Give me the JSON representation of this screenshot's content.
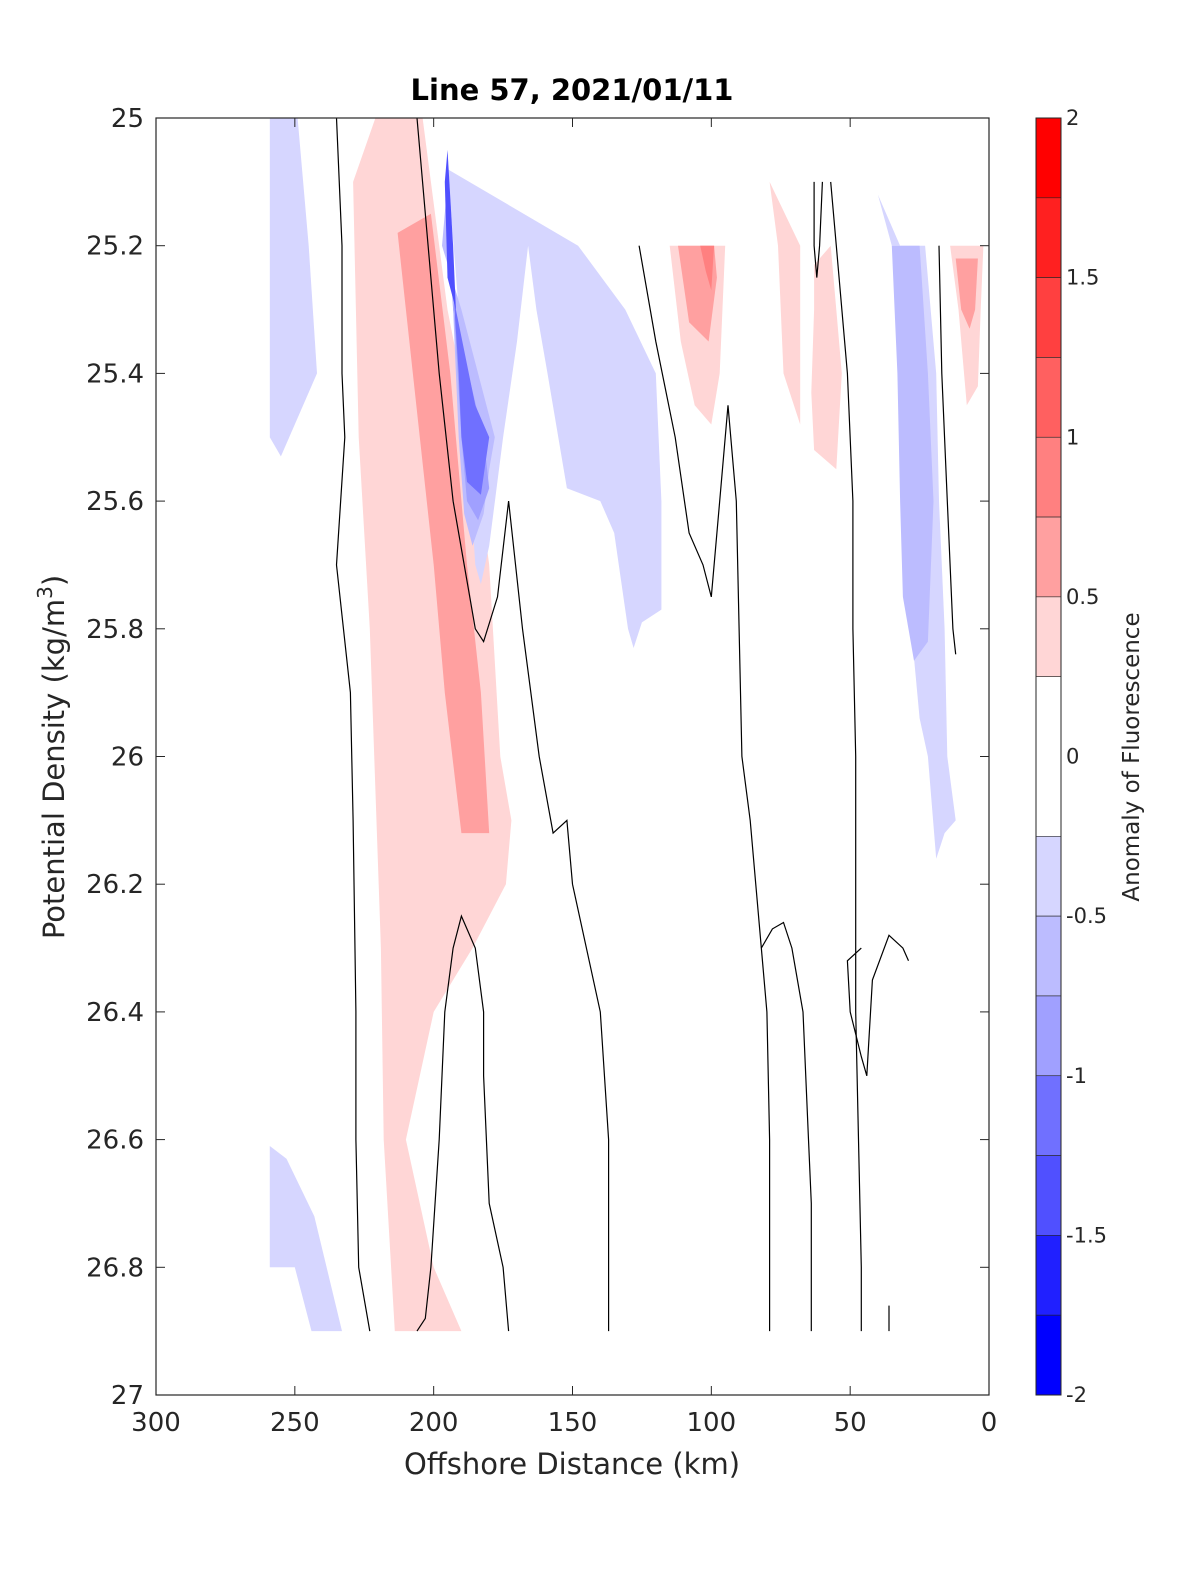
{
  "chart_data": {
    "type": "contour",
    "title": "Line 57, 2021/01/11",
    "xlabel": "Offshore Distance (km)",
    "ylabel": "Potential Density (kg/m3)",
    "ylabel_main": "Potential Density (kg/m",
    "ylabel_sup": "3",
    "ylabel_close": ")",
    "xlim": [
      300,
      0
    ],
    "ylim": [
      25,
      27
    ],
    "y_reversed": true,
    "x_ticks": [
      "300",
      "250",
      "200",
      "150",
      "100",
      "50",
      "0"
    ],
    "y_ticks": [
      "25",
      "25.2",
      "25.4",
      "25.6",
      "25.8",
      "26",
      "26.2",
      "26.4",
      "26.6",
      "26.8",
      "27"
    ],
    "colorbar": {
      "label": "Anomaly of Fluorescence",
      "range": [
        -2,
        2
      ],
      "tick_labels": [
        "2",
        "1.5",
        "1",
        "0.5",
        "0",
        "-0.5",
        "-1",
        "-1.5",
        "-2"
      ],
      "levels": [
        {
          "min": 1.75,
          "max": 2.0,
          "color": "#ff0000"
        },
        {
          "min": 1.5,
          "max": 1.75,
          "color": "#ff2020"
        },
        {
          "min": 1.25,
          "max": 1.5,
          "color": "#ff4040"
        },
        {
          "min": 1.0,
          "max": 1.25,
          "color": "#ff6060"
        },
        {
          "min": 0.75,
          "max": 1.0,
          "color": "#ff8080"
        },
        {
          "min": 0.5,
          "max": 0.75,
          "color": "#ffa0a0"
        },
        {
          "min": 0.25,
          "max": 0.5,
          "color": "#ffd6d6"
        },
        {
          "min": -0.25,
          "max": 0.25,
          "color": "#ffffff"
        },
        {
          "min": -0.5,
          "max": -0.25,
          "color": "#d6d6ff"
        },
        {
          "min": -0.75,
          "max": -0.5,
          "color": "#bcbcff"
        },
        {
          "min": -1.0,
          "max": -0.75,
          "color": "#a0a0ff"
        },
        {
          "min": -1.25,
          "max": -1.0,
          "color": "#7070ff"
        },
        {
          "min": -1.5,
          "max": -1.25,
          "color": "#5050ff"
        },
        {
          "min": -1.75,
          "max": -1.5,
          "color": "#2020ff"
        },
        {
          "min": -2.0,
          "max": -1.75,
          "color": "#0000ff"
        }
      ]
    },
    "filled_regions": [
      {
        "level": 0.375,
        "color": "#ffd6d6",
        "points": [
          [
            221,
            25
          ],
          [
            204,
            25
          ],
          [
            195,
            25.3
          ],
          [
            186,
            25.5
          ],
          [
            180,
            25.7
          ],
          [
            176,
            26
          ],
          [
            172,
            26.1
          ],
          [
            174,
            26.2
          ],
          [
            186,
            26.3
          ],
          [
            200,
            26.4
          ],
          [
            210,
            26.6
          ],
          [
            200,
            26.8
          ],
          [
            190,
            26.9
          ],
          [
            214,
            26.9
          ],
          [
            218,
            26.6
          ],
          [
            219,
            26.3
          ],
          [
            223,
            25.8
          ],
          [
            227,
            25.5
          ],
          [
            228,
            25.3
          ],
          [
            229,
            25.1
          ]
        ]
      },
      {
        "level": 0.625,
        "color": "#ffa0a0",
        "points": [
          [
            213,
            25.18
          ],
          [
            201,
            25.15
          ],
          [
            194,
            25.4
          ],
          [
            188,
            25.7
          ],
          [
            183,
            25.9
          ],
          [
            180,
            26.12
          ],
          [
            190,
            26.12
          ],
          [
            196,
            25.9
          ],
          [
            200,
            25.7
          ],
          [
            205,
            25.5
          ],
          [
            210,
            25.3
          ]
        ]
      },
      {
        "level": -0.375,
        "color": "#d6d6ff",
        "points": [
          [
            259,
            25
          ],
          [
            249,
            25
          ],
          [
            245,
            25.2
          ],
          [
            242,
            25.4
          ],
          [
            255,
            25.53
          ],
          [
            259,
            25.5
          ]
        ]
      },
      {
        "level": -0.375,
        "color": "#d6d6ff",
        "points": [
          [
            259,
            26.61
          ],
          [
            253,
            26.63
          ],
          [
            243,
            26.72
          ],
          [
            233,
            26.9
          ],
          [
            244,
            26.9
          ],
          [
            250,
            26.8
          ],
          [
            259,
            26.8
          ]
        ]
      },
      {
        "level": -0.375,
        "color": "#d6d6ff",
        "points": [
          [
            195,
            25.08
          ],
          [
            191,
            25.3
          ],
          [
            188,
            25.5
          ],
          [
            185,
            25.7
          ],
          [
            183,
            25.73
          ],
          [
            180,
            25.67
          ],
          [
            175,
            25.5
          ],
          [
            170,
            25.35
          ],
          [
            166,
            25.2
          ],
          [
            163,
            25.3
          ],
          [
            159,
            25.4
          ],
          [
            152,
            25.58
          ],
          [
            140,
            25.6
          ],
          [
            135,
            25.65
          ],
          [
            130,
            25.8
          ],
          [
            128,
            25.83
          ],
          [
            125,
            25.79
          ],
          [
            118,
            25.77
          ],
          [
            118,
            25.6
          ],
          [
            120,
            25.4
          ],
          [
            131,
            25.3
          ],
          [
            148,
            25.2
          ]
        ]
      },
      {
        "level": -0.375,
        "color": "#d6d6ff",
        "points": [
          [
            40,
            25.12
          ],
          [
            32,
            25.2
          ],
          [
            30,
            25.4
          ],
          [
            29,
            25.6
          ],
          [
            28,
            25.8
          ],
          [
            25,
            25.94
          ],
          [
            22,
            26
          ],
          [
            19,
            26.16
          ],
          [
            16,
            26.12
          ],
          [
            12,
            26.1
          ],
          [
            15,
            26
          ],
          [
            16,
            25.8
          ],
          [
            18,
            25.6
          ],
          [
            19,
            25.4
          ],
          [
            23,
            25.2
          ],
          [
            35,
            25.2
          ]
        ]
      },
      {
        "level": -0.625,
        "color": "#bcbcff",
        "points": [
          [
            195,
            25.1
          ],
          [
            193,
            25.3
          ],
          [
            191,
            25.5
          ],
          [
            189,
            25.62
          ],
          [
            186,
            25.67
          ],
          [
            182,
            25.62
          ],
          [
            180,
            25.55
          ],
          [
            178,
            25.5
          ],
          [
            190,
            25.3
          ],
          [
            197,
            25.2
          ]
        ]
      },
      {
        "level": -0.625,
        "color": "#bcbcff",
        "points": [
          [
            35,
            25.2
          ],
          [
            33,
            25.4
          ],
          [
            32,
            25.6
          ],
          [
            31,
            25.75
          ],
          [
            27,
            25.85
          ],
          [
            22,
            25.82
          ],
          [
            20,
            25.6
          ],
          [
            22,
            25.4
          ],
          [
            25,
            25.2
          ]
        ]
      },
      {
        "level": -0.875,
        "color": "#a0a0ff",
        "points": [
          [
            195,
            25.15
          ],
          [
            192,
            25.35
          ],
          [
            190,
            25.5
          ],
          [
            188,
            25.6
          ],
          [
            184,
            25.63
          ],
          [
            180,
            25.58
          ],
          [
            182,
            25.5
          ],
          [
            193,
            25.3
          ]
        ]
      },
      {
        "level": -1.125,
        "color": "#7070ff",
        "points": [
          [
            194,
            25.2
          ],
          [
            191,
            25.4
          ],
          [
            190,
            25.5
          ],
          [
            188,
            25.57
          ],
          [
            183,
            25.59
          ],
          [
            180,
            25.5
          ],
          [
            185,
            25.45
          ],
          [
            192,
            25.3
          ]
        ]
      },
      {
        "level": -1.375,
        "color": "#5050ff",
        "points": [
          [
            195,
            25.05
          ],
          [
            193,
            25.2
          ],
          [
            192,
            25.3
          ],
          [
            195,
            25.25
          ],
          [
            196,
            25.1
          ]
        ]
      },
      {
        "level": 0.375,
        "color": "#ffd6d6",
        "points": [
          [
            115,
            25.2
          ],
          [
            111,
            25.35
          ],
          [
            106,
            25.45
          ],
          [
            100,
            25.48
          ],
          [
            97,
            25.4
          ],
          [
            95,
            25.2
          ]
        ]
      },
      {
        "level": 0.625,
        "color": "#ffa0a0",
        "points": [
          [
            112,
            25.2
          ],
          [
            108,
            25.32
          ],
          [
            101,
            25.35
          ],
          [
            98,
            25.25
          ],
          [
            99,
            25.2
          ]
        ]
      },
      {
        "level": 0.875,
        "color": "#ff8080",
        "points": [
          [
            104,
            25.2
          ],
          [
            102,
            25.24
          ],
          [
            100,
            25.27
          ],
          [
            99,
            25.2
          ]
        ]
      },
      {
        "level": 0.375,
        "color": "#ffd6d6",
        "points": [
          [
            79,
            25.1
          ],
          [
            76,
            25.2
          ],
          [
            74,
            25.4
          ],
          [
            68,
            25.48
          ],
          [
            68,
            25.3
          ],
          [
            68,
            25.2
          ]
        ]
      },
      {
        "level": 0.375,
        "color": "#ffd6d6",
        "points": [
          [
            63,
            25.23
          ],
          [
            63,
            25.3
          ],
          [
            64,
            25.43
          ],
          [
            63,
            25.52
          ],
          [
            55,
            25.55
          ],
          [
            53,
            25.4
          ],
          [
            55,
            25.3
          ],
          [
            57,
            25.2
          ]
        ]
      },
      {
        "level": 0.375,
        "color": "#ffd6d6",
        "points": [
          [
            14,
            25.2
          ],
          [
            11,
            25.3
          ],
          [
            8,
            25.45
          ],
          [
            4,
            25.42
          ],
          [
            3,
            25.3
          ],
          [
            2,
            25.2
          ]
        ]
      },
      {
        "level": 0.625,
        "color": "#ffa0a0",
        "points": [
          [
            12,
            25.22
          ],
          [
            10,
            25.3
          ],
          [
            7,
            25.33
          ],
          [
            5,
            25.3
          ],
          [
            4,
            25.22
          ]
        ]
      }
    ],
    "contour_lines": [
      {
        "points": [
          [
            235,
            25
          ],
          [
            233,
            25.2
          ],
          [
            233,
            25.4
          ],
          [
            232,
            25.5
          ],
          [
            235,
            25.7
          ],
          [
            230,
            25.9
          ],
          [
            229,
            26.1
          ],
          [
            228,
            26.4
          ],
          [
            228,
            26.6
          ],
          [
            227,
            26.8
          ],
          [
            223,
            26.9
          ]
        ]
      },
      {
        "points": [
          [
            206,
            25
          ],
          [
            202,
            25.2
          ],
          [
            198,
            25.4
          ],
          [
            193,
            25.6
          ],
          [
            189,
            25.7
          ],
          [
            185,
            25.8
          ],
          [
            182,
            25.82
          ],
          [
            177,
            25.75
          ],
          [
            173,
            25.6
          ],
          [
            168,
            25.8
          ],
          [
            162,
            26
          ],
          [
            157,
            26.12
          ],
          [
            152,
            26.1
          ],
          [
            150,
            26.2
          ],
          [
            140,
            26.4
          ],
          [
            137,
            26.6
          ],
          [
            137,
            26.9
          ]
        ]
      },
      {
        "points": [
          [
            173,
            26.9
          ],
          [
            175,
            26.8
          ],
          [
            180,
            26.7
          ],
          [
            182,
            26.5
          ],
          [
            182,
            26.4
          ],
          [
            185,
            26.3
          ],
          [
            190,
            26.25
          ],
          [
            193,
            26.3
          ],
          [
            196,
            26.4
          ],
          [
            198,
            26.6
          ],
          [
            201,
            26.8
          ],
          [
            203,
            26.88
          ],
          [
            206,
            26.9
          ]
        ]
      },
      {
        "points": [
          [
            126,
            25.2
          ],
          [
            120,
            25.35
          ],
          [
            113,
            25.5
          ],
          [
            108,
            25.65
          ],
          [
            103,
            25.7
          ],
          [
            100,
            25.75
          ],
          [
            97,
            25.6
          ],
          [
            94,
            25.45
          ],
          [
            91,
            25.6
          ],
          [
            90,
            25.8
          ],
          [
            89,
            26
          ],
          [
            86,
            26.1
          ],
          [
            80,
            26.4
          ],
          [
            79,
            26.6
          ],
          [
            79,
            26.9
          ]
        ]
      },
      {
        "points": [
          [
            64,
            26.9
          ],
          [
            64,
            26.7
          ],
          [
            65,
            26.6
          ],
          [
            67,
            26.4
          ],
          [
            71,
            26.3
          ],
          [
            74,
            26.26
          ],
          [
            78,
            26.27
          ],
          [
            82,
            26.3
          ]
        ]
      },
      {
        "points": [
          [
            63,
            25.1
          ],
          [
            63,
            25.2
          ],
          [
            62,
            25.25
          ],
          [
            61,
            25.2
          ],
          [
            60,
            25.1
          ]
        ]
      },
      {
        "points": [
          [
            57,
            25.1
          ],
          [
            55,
            25.2
          ],
          [
            51,
            25.4
          ],
          [
            49,
            25.6
          ],
          [
            49,
            25.8
          ],
          [
            48,
            26
          ],
          [
            48,
            26.2
          ],
          [
            48,
            26.4
          ],
          [
            47,
            26.6
          ],
          [
            46,
            26.8
          ],
          [
            46,
            26.9
          ]
        ]
      },
      {
        "points": [
          [
            29,
            26.32
          ],
          [
            31,
            26.3
          ],
          [
            36,
            26.28
          ],
          [
            42,
            26.35
          ],
          [
            44,
            26.5
          ],
          [
            46,
            26.47
          ],
          [
            50,
            26.4
          ],
          [
            51,
            26.32
          ],
          [
            46,
            26.3
          ]
        ]
      },
      {
        "points": [
          [
            18,
            25.2
          ],
          [
            17,
            25.4
          ],
          [
            15,
            25.6
          ],
          [
            13,
            25.8
          ],
          [
            12,
            25.84
          ]
        ]
      },
      {
        "points": [
          [
            36,
            26.86
          ],
          [
            36,
            26.9
          ]
        ]
      }
    ]
  }
}
